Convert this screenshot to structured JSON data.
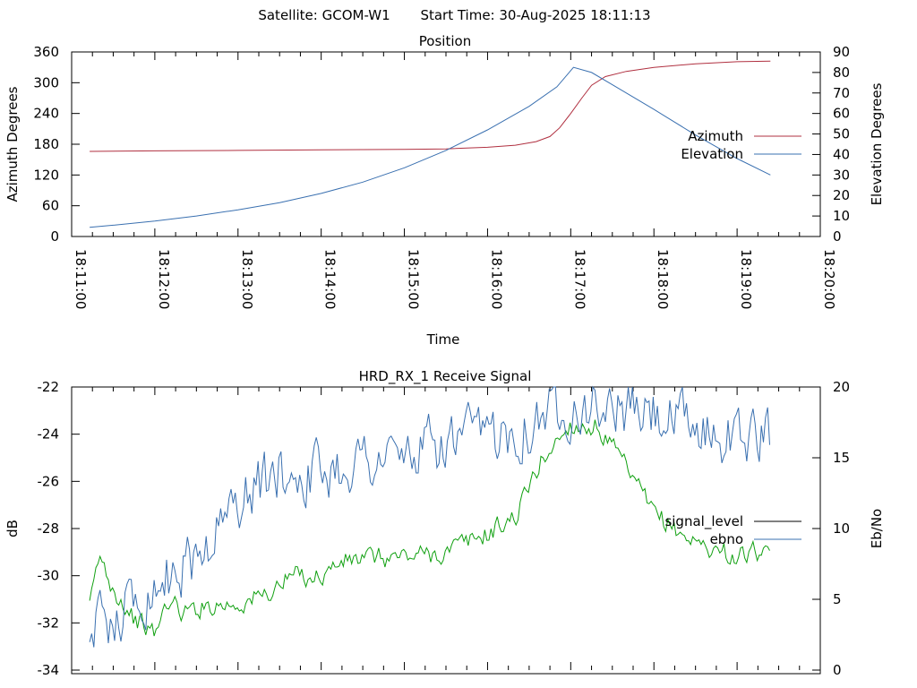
{
  "header": {
    "satellite_label": "Satellite: GCOM-W1",
    "start_time_label": "Start Time: 30-Aug-2025 18:11:13"
  },
  "chart_data": [
    {
      "type": "line",
      "title": "Position",
      "xlabel": "Time",
      "ylabel": "Azimuth Degrees",
      "y2label": "Elevation Degrees",
      "xlim": [
        "18:11:00",
        "18:20:00"
      ],
      "ylim": [
        0,
        360
      ],
      "y2lim": [
        0,
        90
      ],
      "x_ticks": [
        "18:11:00",
        "18:12:00",
        "18:13:00",
        "18:14:00",
        "18:15:00",
        "18:16:00",
        "18:17:00",
        "18:18:00",
        "18:19:00",
        "18:20:00"
      ],
      "y_ticks": [
        0,
        60,
        120,
        180,
        240,
        300,
        360
      ],
      "y2_ticks": [
        0,
        10,
        20,
        30,
        40,
        50,
        60,
        70,
        80,
        90
      ],
      "legend_position": "right",
      "series": [
        {
          "name": "Azimuth",
          "axis": "y",
          "color": "#b03040",
          "points": [
            [
              "18:11:13",
              166
            ],
            [
              "18:12:00",
              167
            ],
            [
              "18:13:00",
              168
            ],
            [
              "18:14:00",
              169
            ],
            [
              "18:15:00",
              170
            ],
            [
              "18:15:30",
              171
            ],
            [
              "18:16:00",
              174
            ],
            [
              "18:16:20",
              178
            ],
            [
              "18:16:35",
              185
            ],
            [
              "18:16:45",
              195
            ],
            [
              "18:16:52",
              212
            ],
            [
              "18:17:00",
              240
            ],
            [
              "18:17:08",
              270
            ],
            [
              "18:17:15",
              295
            ],
            [
              "18:17:25",
              312
            ],
            [
              "18:17:40",
              322
            ],
            [
              "18:18:00",
              330
            ],
            [
              "18:18:30",
              337
            ],
            [
              "18:19:00",
              341
            ],
            [
              "18:19:24",
              342
            ]
          ]
        },
        {
          "name": "Elevation",
          "axis": "y2",
          "color": "#3a70b0",
          "points": [
            [
              "18:11:13",
              4.5
            ],
            [
              "18:11:30",
              5.5
            ],
            [
              "18:12:00",
              7.5
            ],
            [
              "18:12:30",
              10
            ],
            [
              "18:13:00",
              13
            ],
            [
              "18:13:30",
              16.5
            ],
            [
              "18:14:00",
              21
            ],
            [
              "18:14:30",
              26.5
            ],
            [
              "18:15:00",
              33.5
            ],
            [
              "18:15:30",
              42
            ],
            [
              "18:16:00",
              52
            ],
            [
              "18:16:30",
              63.5
            ],
            [
              "18:16:50",
              73
            ],
            [
              "18:17:02",
              82.5
            ],
            [
              "18:17:15",
              80
            ],
            [
              "18:17:30",
              74
            ],
            [
              "18:18:00",
              62
            ],
            [
              "18:18:30",
              49.5
            ],
            [
              "18:19:00",
              38
            ],
            [
              "18:19:24",
              30
            ]
          ]
        }
      ]
    },
    {
      "type": "line",
      "title": "HRD_RX_1 Receive Signal",
      "xlabel": "",
      "ylabel": "dB",
      "y2label": "Eb/No",
      "xlim": [
        "18:11:00",
        "18:20:00"
      ],
      "ylim": [
        -34,
        -22
      ],
      "y2lim": [
        0,
        20
      ],
      "y_ticks": [
        -22,
        -24,
        -26,
        -28,
        -30,
        -32,
        -34
      ],
      "y2_ticks": [
        0,
        5,
        10,
        15,
        20
      ],
      "legend_position": "right",
      "series": [
        {
          "name": "signal_level",
          "axis": "y",
          "color": "#10a010",
          "noise": 0.4,
          "points": [
            [
              "18:11:13",
              -31.4
            ],
            [
              "18:11:20",
              -29.2
            ],
            [
              "18:11:30",
              -30.5
            ],
            [
              "18:11:45",
              -31.8
            ],
            [
              "18:12:00",
              -32.5
            ],
            [
              "18:12:10",
              -31.0
            ],
            [
              "18:12:20",
              -31.6
            ],
            [
              "18:12:40",
              -31.2
            ],
            [
              "18:13:00",
              -31.2
            ],
            [
              "18:13:20",
              -30.8
            ],
            [
              "18:13:40",
              -30.0
            ],
            [
              "18:14:00",
              -30.0
            ],
            [
              "18:14:15",
              -29.4
            ],
            [
              "18:14:30",
              -29.3
            ],
            [
              "18:15:00",
              -29.2
            ],
            [
              "18:15:30",
              -29.0
            ],
            [
              "18:16:00",
              -28.2
            ],
            [
              "18:16:20",
              -27.5
            ],
            [
              "18:16:40",
              -25.0
            ],
            [
              "18:17:00",
              -23.6
            ],
            [
              "18:17:20",
              -23.7
            ],
            [
              "18:17:40",
              -25.5
            ],
            [
              "18:18:00",
              -27.4
            ],
            [
              "18:18:30",
              -28.6
            ],
            [
              "18:19:00",
              -29.2
            ],
            [
              "18:19:15",
              -29.0
            ],
            [
              "18:19:24",
              -29.5
            ]
          ]
        },
        {
          "name": "ebno",
          "axis": "y2",
          "color": "#3a70b0",
          "noise": 1.8,
          "points": [
            [
              "18:11:13",
              3
            ],
            [
              "18:11:30",
              4
            ],
            [
              "18:12:00",
              6
            ],
            [
              "18:12:30",
              8
            ],
            [
              "18:13:00",
              12
            ],
            [
              "18:13:30",
              14
            ],
            [
              "18:14:00",
              14
            ],
            [
              "18:14:30",
              15
            ],
            [
              "18:15:00",
              15
            ],
            [
              "18:15:30",
              16
            ],
            [
              "18:16:00",
              16.5
            ],
            [
              "18:16:30",
              17.5
            ],
            [
              "18:17:00",
              19
            ],
            [
              "18:17:30",
              18.5
            ],
            [
              "18:18:00",
              18
            ],
            [
              "18:18:30",
              17
            ],
            [
              "18:19:00",
              16.5
            ],
            [
              "18:19:24",
              16.5
            ]
          ]
        }
      ]
    }
  ]
}
